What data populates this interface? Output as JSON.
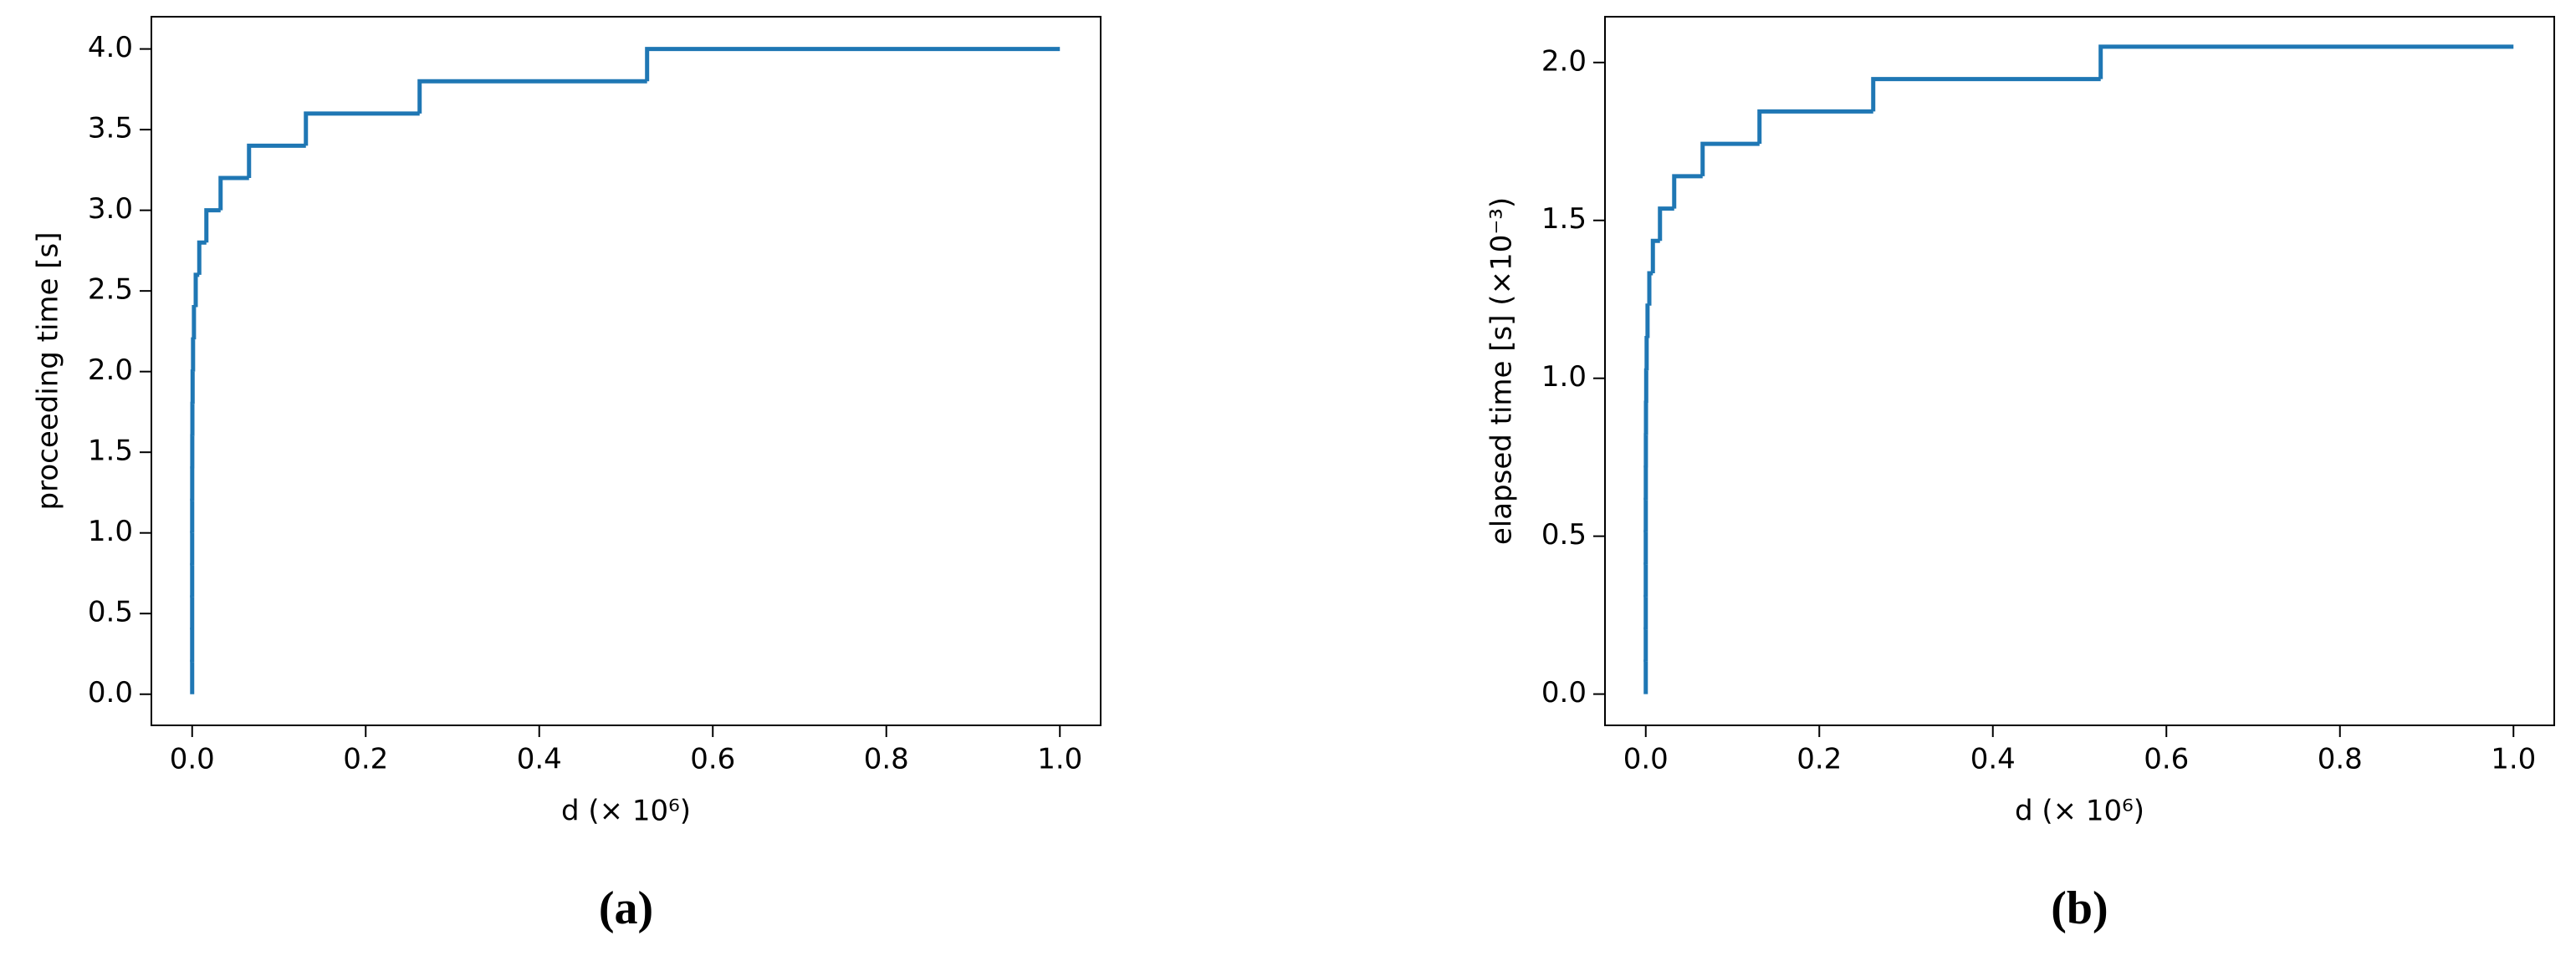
{
  "chart_data": [
    {
      "type": "line",
      "step": "post",
      "label": "(a)",
      "xlabel": "d (× 10⁶)",
      "ylabel": "proceeding time [s]",
      "color": "#1f77b4",
      "x": [
        0,
        1e-06,
        2e-06,
        4e-06,
        8e-06,
        1.6e-05,
        3.2e-05,
        6.4e-05,
        0.000128,
        0.000256,
        0.000512,
        0.001024,
        0.002048,
        0.004096,
        0.008192,
        0.016384,
        0.032768,
        0.065536,
        0.131072,
        0.262144,
        0.524288,
        1.0
      ],
      "values": [
        0,
        0.2,
        0.4,
        0.6,
        0.8,
        1.0,
        1.2,
        1.4,
        1.6,
        1.8,
        2.0,
        2.2,
        2.4,
        2.6,
        2.8,
        3.0,
        3.2,
        3.4,
        3.6,
        3.8,
        4.0,
        4.0
      ],
      "xlim": [
        -0.047,
        1.047
      ],
      "ylim": [
        -0.193,
        4.2
      ],
      "xticks": [
        {
          "value": 0,
          "label": "0.0"
        },
        {
          "value": 0.2,
          "label": "0.2"
        },
        {
          "value": 0.4,
          "label": "0.4"
        },
        {
          "value": 0.6,
          "label": "0.6"
        },
        {
          "value": 0.8,
          "label": "0.8"
        },
        {
          "value": 1.0,
          "label": "1.0"
        }
      ],
      "yticks": [
        {
          "value": 0,
          "label": "0.0"
        },
        {
          "value": 0.5,
          "label": "0.5"
        },
        {
          "value": 1.0,
          "label": "1.0"
        },
        {
          "value": 1.5,
          "label": "1.5"
        },
        {
          "value": 2.0,
          "label": "2.0"
        },
        {
          "value": 2.5,
          "label": "2.5"
        },
        {
          "value": 3.0,
          "label": "3.0"
        },
        {
          "value": 3.5,
          "label": "3.5"
        },
        {
          "value": 4.0,
          "label": "4.0"
        }
      ]
    },
    {
      "type": "line",
      "step": "post",
      "label": "(b)",
      "xlabel": "d (× 10⁶)",
      "ylabel": "elapsed time [s] (×10⁻³)",
      "color": "#1f77b4",
      "x": [
        0,
        1e-06,
        2e-06,
        4e-06,
        8e-06,
        1.6e-05,
        3.2e-05,
        6.4e-05,
        0.000128,
        0.000256,
        0.000512,
        0.001024,
        0.002048,
        0.004096,
        0.008192,
        0.016384,
        0.032768,
        0.065536,
        0.131072,
        0.262144,
        0.524288,
        1.0
      ],
      "values": [
        0,
        0.1025,
        0.205,
        0.3075,
        0.41,
        0.5125,
        0.615,
        0.7175,
        0.82,
        0.9225,
        1.025,
        1.1275,
        1.23,
        1.3325,
        1.435,
        1.5375,
        1.64,
        1.7425,
        1.845,
        1.9475,
        2.05,
        2.05
      ],
      "xlim": [
        -0.047,
        1.047
      ],
      "ylim": [
        -0.099,
        2.145
      ],
      "xticks": [
        {
          "value": 0,
          "label": "0.0"
        },
        {
          "value": 0.2,
          "label": "0.2"
        },
        {
          "value": 0.4,
          "label": "0.4"
        },
        {
          "value": 0.6,
          "label": "0.6"
        },
        {
          "value": 0.8,
          "label": "0.8"
        },
        {
          "value": 1.0,
          "label": "1.0"
        }
      ],
      "yticks": [
        {
          "value": 0,
          "label": "0.0"
        },
        {
          "value": 0.5,
          "label": "0.5"
        },
        {
          "value": 1.0,
          "label": "1.0"
        },
        {
          "value": 1.5,
          "label": "1.5"
        },
        {
          "value": 2.0,
          "label": "2.0"
        }
      ]
    }
  ]
}
